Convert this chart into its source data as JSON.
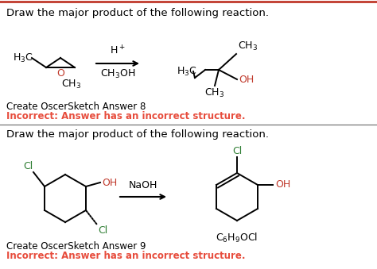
{
  "bg_color": "#ffffff",
  "top_border_color": "#c0392b",
  "title_text": "Draw the major product of the following reaction.",
  "title_fontsize": 9.5,
  "title_color": "#000000",
  "incorrect_label": "Incorrect: Answer has an incorrect structure.",
  "incorrect_color": "#e74c3c",
  "create_label_8": "Create OscerSketch Answer 8",
  "create_label_9": "Create OscerSketch Answer 9",
  "figsize": [
    4.74,
    3.39
  ],
  "dpi": 100,
  "black": "#000000",
  "red": "#c0392b",
  "green": "#2e7d32",
  "dark_red": "#e74c3c"
}
